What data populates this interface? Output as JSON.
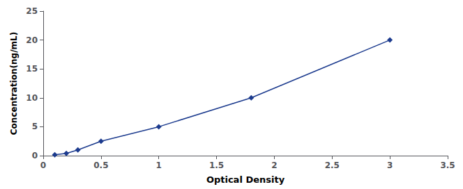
{
  "chart_data": {
    "type": "line",
    "xlabel": "Optical Density",
    "ylabel": "Concentration(ng/mL)",
    "x": [
      0.1,
      0.2,
      0.3,
      0.5,
      1.0,
      1.8,
      3.0
    ],
    "values": [
      0.16,
      0.4,
      1.0,
      2.5,
      5.0,
      10.0,
      20.0
    ],
    "color": "#1C3B8E",
    "marker": "diamond",
    "xlim": [
      0,
      3.5
    ],
    "ylim": [
      0,
      25
    ],
    "xticks": [
      0,
      0.5,
      1.0,
      1.5,
      2.0,
      2.5,
      3.0,
      3.5
    ],
    "yticks": [
      0,
      5,
      10,
      15,
      20,
      25
    ],
    "grid": false
  }
}
